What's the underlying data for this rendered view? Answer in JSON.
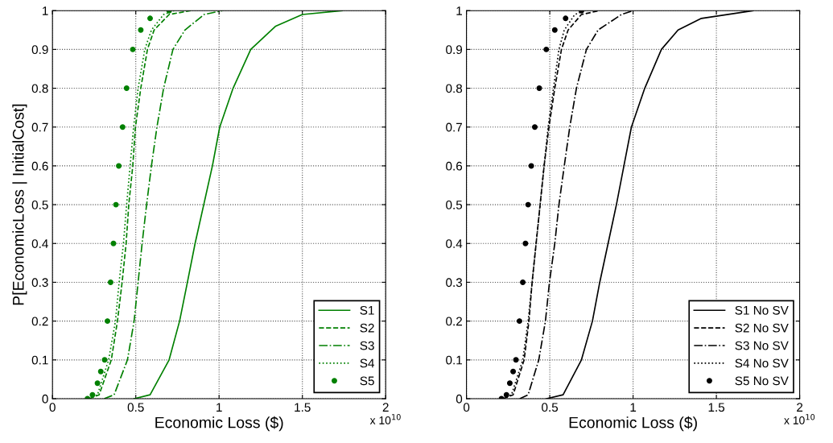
{
  "chart_data": [
    {
      "type": "line",
      "xlabel": "Economic Loss ($)",
      "ylabel": "P[EconomicLoss | InitialCost]",
      "annotations": [
        "x 10$^{10}$"
      ],
      "xlim": [
        0,
        2
      ],
      "ylim": [
        0,
        1
      ],
      "xticks": [
        0,
        0.5,
        1,
        1.5,
        2
      ],
      "yticks": [
        0,
        0.1,
        0.2,
        0.3,
        0.4,
        0.5,
        0.6,
        0.7,
        0.8,
        0.9,
        1
      ],
      "grid": true,
      "legend": "bottom right",
      "series": [
        {
          "name": "S1",
          "color": "#008000",
          "line_style": "solid",
          "x": [
            0.49,
            0.586,
            0.7,
            0.763,
            0.81,
            0.856,
            0.908,
            0.96,
            1.004,
            1.084,
            1.19,
            1.34,
            1.5,
            1.74
          ],
          "values": [
            0,
            0.01,
            0.1,
            0.2,
            0.3,
            0.4,
            0.5,
            0.6,
            0.7,
            0.8,
            0.9,
            0.96,
            0.99,
            1
          ]
        },
        {
          "name": "S2",
          "color": "#008000",
          "line_style": "dashed",
          "x": [
            0.22,
            0.28,
            0.353,
            0.39,
            0.418,
            0.442,
            0.458,
            0.482,
            0.498,
            0.53,
            0.57,
            0.61,
            0.7,
            0.83
          ],
          "values": [
            0,
            0.01,
            0.1,
            0.2,
            0.3,
            0.4,
            0.5,
            0.6,
            0.7,
            0.8,
            0.9,
            0.95,
            0.99,
            1
          ]
        },
        {
          "name": "S3",
          "color": "#008000",
          "line_style": "dashdot",
          "x": [
            0.31,
            0.37,
            0.45,
            0.49,
            0.514,
            0.538,
            0.565,
            0.594,
            0.627,
            0.667,
            0.723,
            0.795,
            0.91,
            1.02
          ],
          "values": [
            0,
            0.01,
            0.1,
            0.2,
            0.3,
            0.4,
            0.5,
            0.6,
            0.7,
            0.8,
            0.9,
            0.95,
            0.99,
            1
          ]
        },
        {
          "name": "S4",
          "color": "#008000",
          "line_style": "dotted",
          "x": [
            0.22,
            0.27,
            0.337,
            0.378,
            0.4,
            0.426,
            0.445,
            0.466,
            0.487,
            0.514,
            0.554,
            0.594,
            0.667,
            0.73
          ],
          "values": [
            0,
            0.01,
            0.1,
            0.2,
            0.3,
            0.4,
            0.5,
            0.6,
            0.7,
            0.8,
            0.9,
            0.95,
            0.99,
            1
          ]
        },
        {
          "name": "S5",
          "color": "#008000",
          "type": "scatter",
          "marker": "circle",
          "x": [
            0.21,
            0.24,
            0.27,
            0.29,
            0.313,
            0.33,
            0.349,
            0.366,
            0.381,
            0.398,
            0.421,
            0.445,
            0.482,
            0.53,
            0.586,
            0.7
          ],
          "values": [
            0,
            0.01,
            0.04,
            0.07,
            0.1,
            0.2,
            0.3,
            0.4,
            0.5,
            0.6,
            0.7,
            0.8,
            0.9,
            0.95,
            0.98,
            1
          ]
        }
      ]
    },
    {
      "type": "line",
      "xlabel": "Economic Loss ($)",
      "annotations": [
        "x 10$^{10}$"
      ],
      "xlim": [
        0,
        2
      ],
      "ylim": [
        0,
        1
      ],
      "xticks": [
        0,
        0.5,
        1,
        1.5,
        2
      ],
      "yticks": [
        0,
        0.1,
        0.2,
        0.3,
        0.4,
        0.5,
        0.6,
        0.7,
        0.8,
        0.9,
        1
      ],
      "grid": true,
      "legend": "bottom right",
      "series": [
        {
          "name": "S1 No SV",
          "color": "#000000",
          "line_style": "solid",
          "x": [
            0.48,
            0.58,
            0.69,
            0.756,
            0.8,
            0.85,
            0.9,
            0.945,
            0.99,
            1.07,
            1.17,
            1.27,
            1.41,
            1.72
          ],
          "values": [
            0,
            0.01,
            0.1,
            0.2,
            0.3,
            0.4,
            0.5,
            0.6,
            0.7,
            0.8,
            0.9,
            0.95,
            0.98,
            1
          ]
        },
        {
          "name": "S2 No SV",
          "color": "#000000",
          "line_style": "dashed",
          "x": [
            0.22,
            0.28,
            0.346,
            0.375,
            0.394,
            0.418,
            0.442,
            0.466,
            0.495,
            0.53,
            0.57,
            0.61,
            0.69,
            0.8
          ],
          "values": [
            0,
            0.01,
            0.1,
            0.2,
            0.3,
            0.4,
            0.5,
            0.6,
            0.7,
            0.8,
            0.9,
            0.95,
            0.99,
            1
          ]
        },
        {
          "name": "S3 No SV",
          "color": "#000000",
          "line_style": "dashdot",
          "x": [
            0.32,
            0.37,
            0.434,
            0.474,
            0.498,
            0.53,
            0.555,
            0.587,
            0.62,
            0.66,
            0.72,
            0.79,
            0.93,
            1.0
          ],
          "values": [
            0,
            0.01,
            0.1,
            0.2,
            0.3,
            0.4,
            0.5,
            0.6,
            0.7,
            0.8,
            0.9,
            0.95,
            0.99,
            1
          ]
        },
        {
          "name": "S4 No SV",
          "color": "#000000",
          "line_style": "dotted",
          "x": [
            0.22,
            0.27,
            0.338,
            0.37,
            0.394,
            0.418,
            0.442,
            0.466,
            0.49,
            0.522,
            0.555,
            0.587,
            0.65,
            0.71
          ],
          "values": [
            0,
            0.01,
            0.1,
            0.2,
            0.3,
            0.4,
            0.5,
            0.6,
            0.7,
            0.8,
            0.9,
            0.95,
            0.99,
            1
          ]
        },
        {
          "name": "S5 No SV",
          "color": "#000000",
          "type": "scatter",
          "marker": "circle",
          "x": [
            0.21,
            0.24,
            0.26,
            0.28,
            0.297,
            0.318,
            0.338,
            0.354,
            0.37,
            0.389,
            0.41,
            0.437,
            0.479,
            0.53,
            0.595,
            0.69
          ],
          "values": [
            0,
            0.01,
            0.04,
            0.07,
            0.1,
            0.2,
            0.3,
            0.4,
            0.5,
            0.6,
            0.7,
            0.8,
            0.9,
            0.95,
            0.98,
            1
          ]
        }
      ]
    }
  ]
}
